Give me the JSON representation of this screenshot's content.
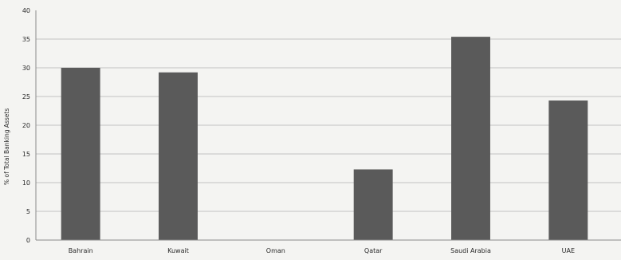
{
  "chart_data": {
    "type": "bar",
    "title": "",
    "xlabel": "",
    "ylabel": "% of Total Banking Assets",
    "categories": [
      "Bahrain",
      "Kuwait",
      "Oman",
      "Qatar",
      "Saudi Arabia",
      "UAE"
    ],
    "values": [
      30,
      29.2,
      0,
      12.3,
      35.4,
      24.3
    ],
    "ylim": [
      0,
      40
    ],
    "yticks": [
      0,
      5,
      10,
      15,
      20,
      25,
      30,
      35,
      40
    ],
    "grid": true,
    "colors": {
      "bar": "#5a5a5a",
      "grid": "#c2c2c2",
      "axis": "#8a8a8a",
      "background": "#f4f4f2"
    }
  }
}
